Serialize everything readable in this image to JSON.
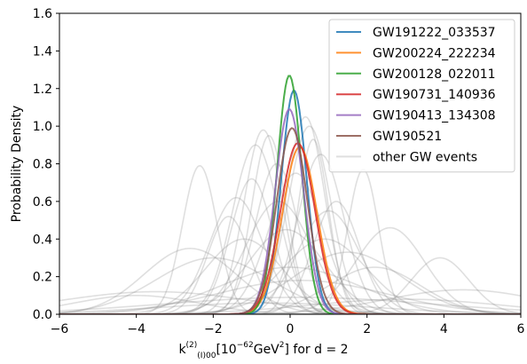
{
  "chart_data": {
    "type": "line",
    "title": "",
    "xlabel": {
      "main": "k",
      "sup": "(2)",
      "sub": "(I)00",
      "units_pre": "[10",
      "units_exp": "−62",
      "units_mid": "GeV",
      "units_exp2": "2",
      "units_post": "] for d = 2"
    },
    "ylabel": "Probability Density",
    "xlim": [
      -6,
      6
    ],
    "ylim": [
      0,
      1.6
    ],
    "xticks": [
      -6,
      -4,
      -2,
      0,
      2,
      4,
      6
    ],
    "yticks": [
      0.0,
      0.2,
      0.4,
      0.6,
      0.8,
      1.0,
      1.2,
      1.4,
      1.6
    ],
    "xtick_labels": [
      "−6",
      "−4",
      "−2",
      "0",
      "2",
      "4",
      "6"
    ],
    "ytick_labels": [
      "0.0",
      "0.2",
      "0.4",
      "0.6",
      "0.8",
      "1.0",
      "1.2",
      "1.4",
      "1.6"
    ],
    "grid": false,
    "legend_position": "top-right",
    "series": [
      {
        "name": "GW191222_033537",
        "color": "#1f77b4",
        "mu": 0.1,
        "sigma": 0.33,
        "peak": 1.19
      },
      {
        "name": "GW200224_222234",
        "color": "#ff7f0e",
        "mu": 0.25,
        "sigma": 0.45,
        "peak": 0.89
      },
      {
        "name": "GW200128_022011",
        "color": "#2ca02c",
        "mu": -0.02,
        "sigma": 0.32,
        "peak": 1.27
      },
      {
        "name": "GW190731_140936",
        "color": "#d62728",
        "mu": 0.2,
        "sigma": 0.45,
        "peak": 0.91
      },
      {
        "name": "GW190413_134308",
        "color": "#9467bd",
        "mu": -0.02,
        "sigma": 0.37,
        "peak": 1.09
      },
      {
        "name": "GW190521",
        "color": "#8c564b",
        "mu": 0.05,
        "sigma": 0.4,
        "peak": 0.99
      }
    ],
    "background_series": {
      "name": "other GW events",
      "color": "#808080",
      "curves": [
        {
          "mu": -2.35,
          "sigma": 0.45,
          "peak": 0.79
        },
        {
          "mu": -0.7,
          "sigma": 0.5,
          "peak": 0.98
        },
        {
          "mu": -0.55,
          "sigma": 0.45,
          "peak": 0.95
        },
        {
          "mu": -0.9,
          "sigma": 0.6,
          "peak": 0.9
        },
        {
          "mu": -1.0,
          "sigma": 0.55,
          "peak": 0.72
        },
        {
          "mu": 0.4,
          "sigma": 0.5,
          "peak": 1.05
        },
        {
          "mu": 0.5,
          "sigma": 0.55,
          "peak": 1.0
        },
        {
          "mu": 0.8,
          "sigma": 0.6,
          "peak": 0.85
        },
        {
          "mu": 1.9,
          "sigma": 0.4,
          "peak": 0.77
        },
        {
          "mu": -1.4,
          "sigma": 0.7,
          "peak": 0.62
        },
        {
          "mu": -1.6,
          "sigma": 0.55,
          "peak": 0.52
        },
        {
          "mu": 1.2,
          "sigma": 0.6,
          "peak": 0.6
        },
        {
          "mu": 1.0,
          "sigma": 0.8,
          "peak": 0.55
        },
        {
          "mu": 2.6,
          "sigma": 0.9,
          "peak": 0.46
        },
        {
          "mu": 3.9,
          "sigma": 0.75,
          "peak": 0.3
        },
        {
          "mu": -2.6,
          "sigma": 1.2,
          "peak": 0.35
        },
        {
          "mu": -2.0,
          "sigma": 1.5,
          "peak": 0.3
        },
        {
          "mu": 1.5,
          "sigma": 1.4,
          "peak": 0.33
        },
        {
          "mu": 0.0,
          "sigma": 1.8,
          "peak": 0.25
        },
        {
          "mu": -3.5,
          "sigma": 2.5,
          "peak": 0.12
        },
        {
          "mu": 4.5,
          "sigma": 2.0,
          "peak": 0.13
        },
        {
          "mu": 0.2,
          "sigma": 3.5,
          "peak": 0.09
        },
        {
          "mu": -0.3,
          "sigma": 0.85,
          "peak": 0.6
        },
        {
          "mu": 0.15,
          "sigma": 0.7,
          "peak": 0.75
        },
        {
          "mu": -0.1,
          "sigma": 1.0,
          "peak": 0.45
        },
        {
          "mu": 0.9,
          "sigma": 1.1,
          "peak": 0.4
        },
        {
          "mu": -1.2,
          "sigma": 1.0,
          "peak": 0.4
        },
        {
          "mu": 2.2,
          "sigma": 1.2,
          "peak": 0.25
        },
        {
          "mu": -4.0,
          "sigma": 1.6,
          "peak": 0.1
        },
        {
          "mu": 3.0,
          "sigma": 2.5,
          "peak": 0.08
        },
        {
          "mu": -0.6,
          "sigma": 2.8,
          "peak": 0.06
        },
        {
          "mu": 0.6,
          "sigma": 0.4,
          "peak": 0.93
        },
        {
          "mu": -0.35,
          "sigma": 0.55,
          "peak": 0.8
        },
        {
          "mu": 0.3,
          "sigma": 2.2,
          "peak": 0.18
        }
      ]
    }
  }
}
